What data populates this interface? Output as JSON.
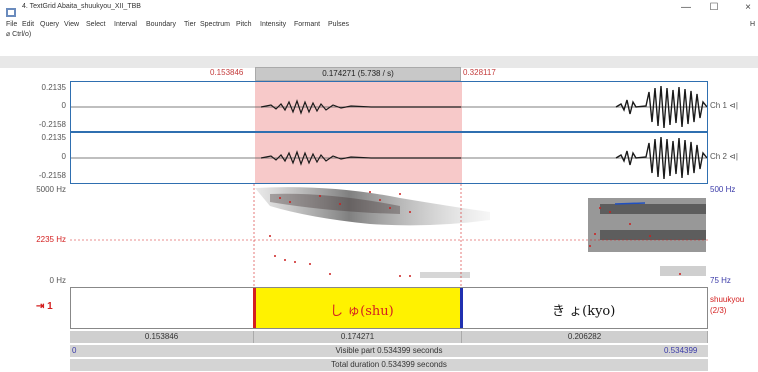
{
  "window": {
    "title": "4. TextGrid Abaita_shuukyou_XII_TBB",
    "minimize": "—",
    "maximize": "☐",
    "close": "×"
  },
  "menu": {
    "items": [
      "File",
      "Edit",
      "Query",
      "View",
      "Select",
      "Interval",
      "Boundary",
      "Tier",
      "Spectrum",
      "Pitch",
      "Intensity",
      "Formant",
      "Pulses"
    ],
    "right_hint": "H"
  },
  "toolbar": {
    "hint": "⌀ Ctrl/o)"
  },
  "selection": {
    "start": "0.153846",
    "duration_label": "0.174271 (5.738 / s)",
    "end": "0.328117"
  },
  "channels": [
    {
      "top": "0.2135",
      "zero": "0",
      "bottom": "-0.2158",
      "name": "Ch 1 ⊲|"
    },
    {
      "top": "0.2135",
      "zero": "0",
      "bottom": "-0.2158",
      "name": "Ch 2 ⊲|"
    }
  ],
  "spectrogram": {
    "max_label": "5000 Hz",
    "cursor_label": "2235 Hz",
    "min_label": "0 Hz",
    "pitch_max": "500 Hz",
    "pitch_min": "75 Hz"
  },
  "tier": {
    "number": "⇥ 1",
    "interval_shu": "し ゅ(shu)",
    "interval_kyo": "き ょ(kyo)",
    "tier_name": "shuukyou",
    "tier_count": "(2/3)"
  },
  "durations": {
    "left": "0.153846",
    "mid": "0.174271",
    "right": "0.206282"
  },
  "visible": {
    "start": "0",
    "label": "Visible part 0.534399 seconds",
    "end": "0.534399"
  },
  "total": {
    "label": "Total duration 0.534399 seconds"
  },
  "colors": {
    "selection_fill": "#f7c9c9",
    "interval_highlight": "#fff200",
    "boundary_red": "#d42020",
    "boundary_blue": "#2030b0",
    "pitch_dots": "#cc2020"
  }
}
